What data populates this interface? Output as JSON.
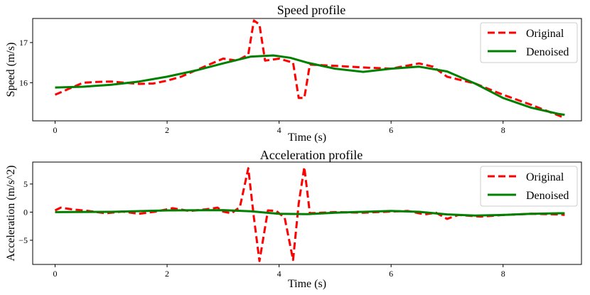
{
  "chart_data": [
    {
      "type": "line",
      "title": "Speed profile",
      "xlabel": "Time (s)",
      "ylabel": "Speed (m/s)",
      "xlim": [
        -0.4,
        9.4
      ],
      "ylim": [
        15.05,
        17.6
      ],
      "xticks": [
        0,
        2,
        4,
        6,
        8
      ],
      "xtick_labels": [
        "0",
        "2",
        "4",
        "6",
        "8"
      ],
      "yticks": [
        16,
        17
      ],
      "ytick_labels": [
        "16",
        "17"
      ],
      "legend_position": "top-right",
      "series": [
        {
          "name": "Original",
          "color": "#ff0000",
          "style": "dashed",
          "x": [
            0,
            0.25,
            0.5,
            0.75,
            1.0,
            1.25,
            1.5,
            1.75,
            2.0,
            2.25,
            2.5,
            2.75,
            3.0,
            3.25,
            3.45,
            3.55,
            3.65,
            3.75,
            4.0,
            4.25,
            4.35,
            4.45,
            4.55,
            5.0,
            5.5,
            6.0,
            6.5,
            6.75,
            7.0,
            7.5,
            8.0,
            8.5,
            9.0,
            9.1
          ],
          "values": [
            15.7,
            15.85,
            16.0,
            16.02,
            16.03,
            16.0,
            15.97,
            15.98,
            16.05,
            16.15,
            16.3,
            16.45,
            16.6,
            16.55,
            16.7,
            17.55,
            17.45,
            16.55,
            16.6,
            16.5,
            15.62,
            15.62,
            16.45,
            16.42,
            16.38,
            16.35,
            16.48,
            16.4,
            16.15,
            15.98,
            15.7,
            15.45,
            15.18,
            15.12
          ]
        },
        {
          "name": "Denoised",
          "color": "#008000",
          "style": "solid",
          "x": [
            0,
            0.5,
            1.0,
            1.5,
            2.0,
            2.5,
            3.0,
            3.5,
            3.9,
            4.2,
            4.5,
            5.0,
            5.5,
            6.0,
            6.5,
            7.0,
            7.5,
            8.0,
            8.5,
            9.0,
            9.1
          ],
          "values": [
            15.88,
            15.9,
            15.95,
            16.03,
            16.15,
            16.3,
            16.48,
            16.65,
            16.68,
            16.62,
            16.5,
            16.35,
            16.27,
            16.35,
            16.4,
            16.28,
            15.98,
            15.62,
            15.38,
            15.22,
            15.2
          ]
        }
      ]
    },
    {
      "type": "line",
      "title": "Acceleration profile",
      "xlabel": "Time (s)",
      "ylabel": "Acceleration (m/s^2)",
      "xlim": [
        -0.4,
        9.4
      ],
      "ylim": [
        -9.3,
        8.9
      ],
      "xticks": [
        0,
        2,
        4,
        6,
        8
      ],
      "xtick_labels": [
        "0",
        "2",
        "4",
        "6",
        "8"
      ],
      "yticks": [
        -5,
        0,
        5
      ],
      "ytick_labels": [
        "−5",
        "0",
        "5"
      ],
      "legend_position": "top-right",
      "series": [
        {
          "name": "Original",
          "color": "#ff0000",
          "style": "dashed",
          "x": [
            0,
            0.1,
            0.3,
            0.6,
            0.9,
            1.2,
            1.5,
            1.8,
            2.1,
            2.4,
            2.7,
            2.9,
            3.0,
            3.15,
            3.3,
            3.45,
            3.55,
            3.65,
            3.8,
            3.95,
            4.1,
            4.25,
            4.35,
            4.45,
            4.55,
            5.0,
            5.5,
            6.0,
            6.3,
            6.6,
            6.8,
            7.0,
            7.2,
            7.6,
            8.0,
            8.5,
            9.0,
            9.1
          ],
          "values": [
            0.3,
            0.8,
            0.5,
            0.2,
            -0.2,
            0.1,
            -0.3,
            0.1,
            0.7,
            0.2,
            0.5,
            0.8,
            0.1,
            -0.2,
            0.9,
            7.8,
            -1.0,
            -8.7,
            0.3,
            0.2,
            -1.0,
            -8.5,
            1.5,
            8.0,
            -0.2,
            0.0,
            -0.1,
            0.1,
            0.2,
            -0.4,
            -0.1,
            -1.2,
            -0.5,
            -0.8,
            -0.5,
            -0.3,
            -0.4,
            -0.5
          ]
        },
        {
          "name": "Denoised",
          "color": "#008000",
          "style": "solid",
          "x": [
            0,
            1.0,
            2.0,
            3.0,
            3.5,
            4.0,
            4.5,
            5.0,
            6.0,
            6.5,
            7.0,
            7.5,
            8.0,
            8.5,
            9.0,
            9.1
          ],
          "values": [
            0.0,
            0.05,
            0.3,
            0.35,
            0.15,
            -0.3,
            -0.35,
            -0.1,
            0.2,
            0.05,
            -0.4,
            -0.6,
            -0.5,
            -0.3,
            -0.2,
            -0.2
          ]
        }
      ]
    }
  ]
}
